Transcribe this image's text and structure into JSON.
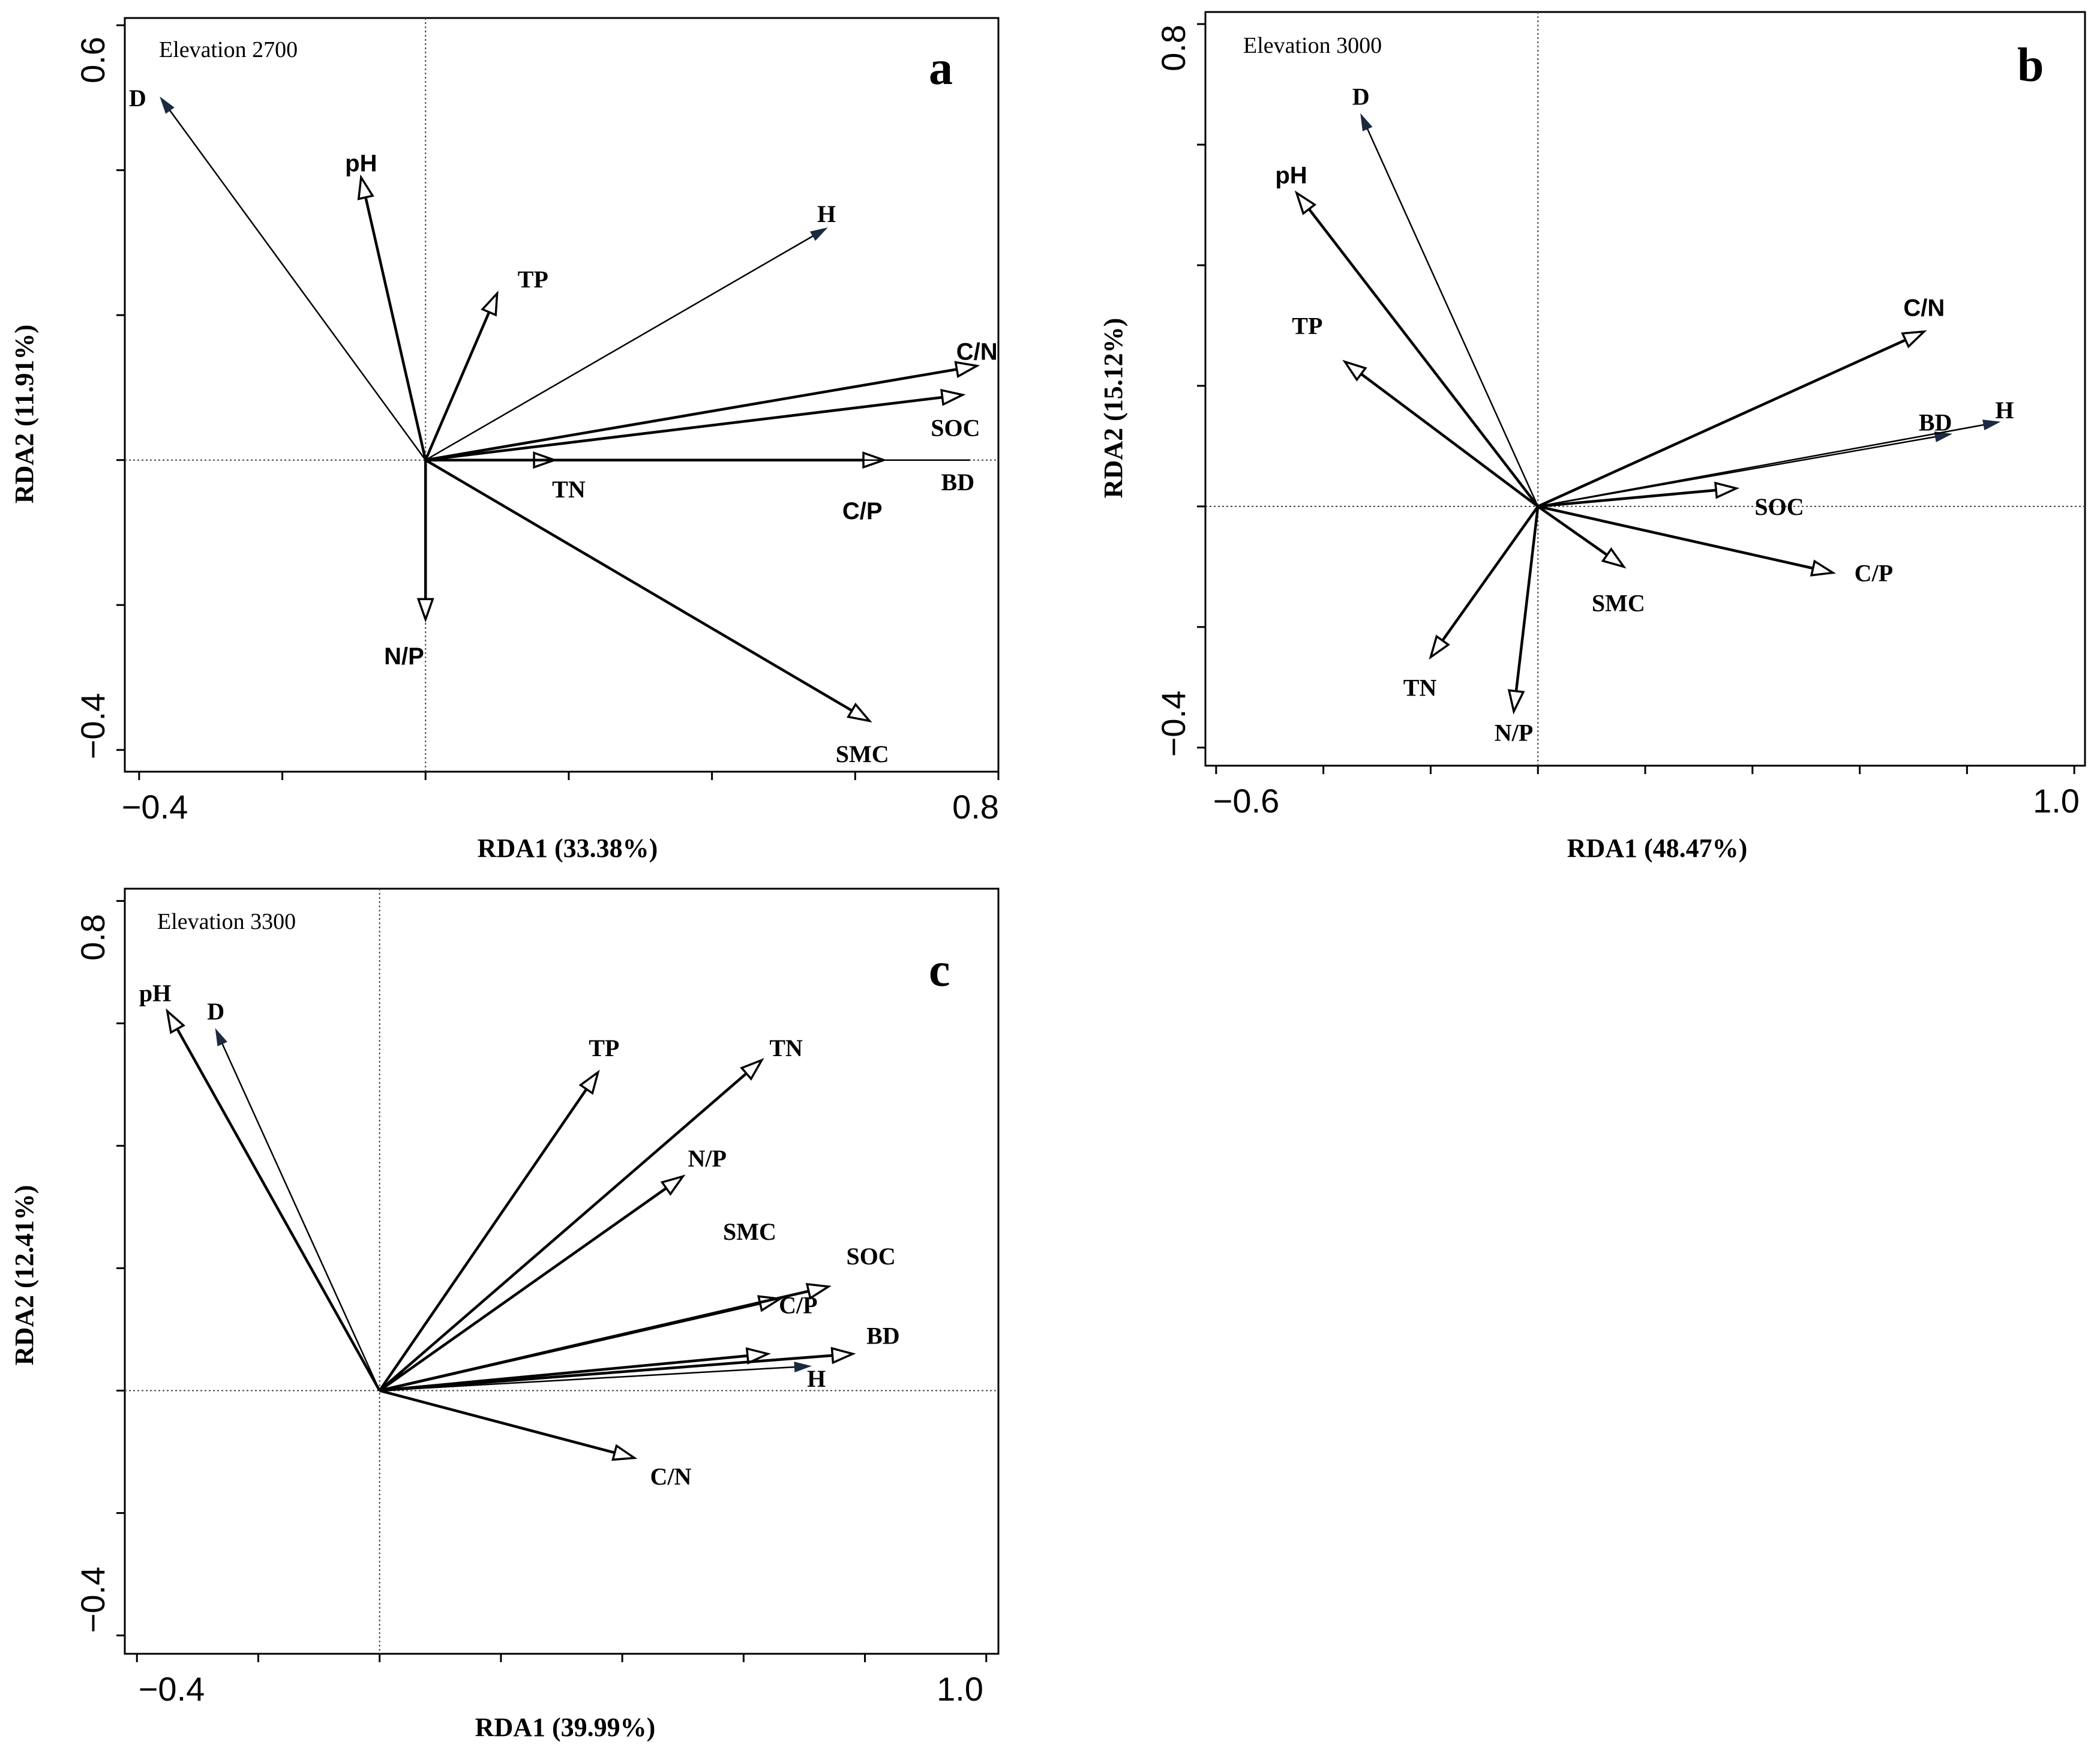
{
  "chart_data": [
    {
      "type": "biplot",
      "panel_letter": "a",
      "elevation_label": "Elevation 2700",
      "xlabel": "RDA1 (33.38%)",
      "ylabel": "RDA2 (11.91%)",
      "xlim": [
        -0.42,
        0.8
      ],
      "ylim": [
        -0.43,
        0.61
      ],
      "x_tick_labels": [
        {
          "value": -0.4,
          "label": "−0.4"
        },
        {
          "value": 0.8,
          "label": "0.8"
        }
      ],
      "y_tick_labels": [
        {
          "value": 0.6,
          "label": "0.6"
        },
        {
          "value": -0.4,
          "label": "−0.4"
        }
      ],
      "x_minor_ticks": [
        -0.4,
        -0.2,
        0.0,
        0.2,
        0.4,
        0.6,
        0.8
      ],
      "y_minor_ticks": [
        -0.4,
        -0.2,
        0.0,
        0.2,
        0.4,
        0.6
      ],
      "vectors": [
        {
          "label": "D",
          "x": -0.37,
          "y": 0.5,
          "head": "filled",
          "lx": -0.39,
          "ly": 0.5,
          "anchor": "end",
          "font": "serif"
        },
        {
          "label": "pH",
          "x": -0.09,
          "y": 0.39,
          "head": "open",
          "lx": -0.09,
          "ly": 0.41,
          "anchor": "middle",
          "font": "sans"
        },
        {
          "label": "TP",
          "x": 0.1,
          "y": 0.23,
          "head": "open",
          "lx": 0.15,
          "ly": 0.25,
          "anchor": "middle",
          "font": "serif"
        },
        {
          "label": "H",
          "x": 0.56,
          "y": 0.32,
          "head": "filled",
          "lx": 0.56,
          "ly": 0.34,
          "anchor": "middle",
          "font": "serif"
        },
        {
          "label": "C/N",
          "x": 0.77,
          "y": 0.13,
          "head": "open",
          "lx": 0.77,
          "ly": 0.15,
          "anchor": "middle",
          "font": "sans"
        },
        {
          "label": "SOC",
          "x": 0.75,
          "y": 0.09,
          "head": "open",
          "lx": 0.74,
          "ly": 0.045,
          "anchor": "middle",
          "font": "serif"
        },
        {
          "label": "TN",
          "x": 0.18,
          "y": 0.0,
          "head": "open",
          "lx": 0.2,
          "ly": -0.04,
          "anchor": "middle",
          "font": "serif"
        },
        {
          "label": "C/P",
          "x": 0.64,
          "y": 0.0,
          "head": "open",
          "lx": 0.61,
          "ly": -0.07,
          "anchor": "middle",
          "font": "sans"
        },
        {
          "label": "BD",
          "x": 0.76,
          "y": 0.0,
          "head": "none",
          "lx": 0.72,
          "ly": -0.03,
          "anchor": "start",
          "font": "serif"
        },
        {
          "label": "N/P",
          "x": 0.0,
          "y": -0.22,
          "head": "open",
          "lx": -0.03,
          "ly": -0.27,
          "anchor": "middle",
          "font": "sans"
        },
        {
          "label": "SMC",
          "x": 0.62,
          "y": -0.36,
          "head": "open",
          "lx": 0.61,
          "ly": -0.405,
          "anchor": "middle",
          "font": "serif"
        }
      ]
    },
    {
      "type": "biplot",
      "panel_letter": "b",
      "elevation_label": "Elevation 3000",
      "xlabel": "RDA1 (48.47%)",
      "ylabel": "RDA2 (15.12%)",
      "xlim": [
        -0.62,
        1.02
      ],
      "ylim": [
        -0.43,
        0.82
      ],
      "x_tick_labels": [
        {
          "value": -0.6,
          "label": "−0.6"
        },
        {
          "value": 1.0,
          "label": "1.0"
        }
      ],
      "y_tick_labels": [
        {
          "value": 0.8,
          "label": "0.8"
        },
        {
          "value": -0.4,
          "label": "−0.4"
        }
      ],
      "x_minor_ticks": [
        -0.6,
        -0.4,
        -0.2,
        0.0,
        0.2,
        0.4,
        0.6,
        0.8,
        1.0
      ],
      "y_minor_ticks": [
        -0.4,
        -0.2,
        0.0,
        0.2,
        0.4,
        0.6,
        0.8
      ],
      "vectors": [
        {
          "label": "D",
          "x": -0.33,
          "y": 0.65,
          "head": "filled",
          "lx": -0.33,
          "ly": 0.68,
          "anchor": "middle",
          "font": "serif"
        },
        {
          "label": "pH",
          "x": -0.45,
          "y": 0.52,
          "head": "open",
          "lx": -0.46,
          "ly": 0.55,
          "anchor": "middle",
          "font": "sans"
        },
        {
          "label": "TP",
          "x": -0.36,
          "y": 0.24,
          "head": "open",
          "lx": -0.43,
          "ly": 0.3,
          "anchor": "middle",
          "font": "serif"
        },
        {
          "label": "C/N",
          "x": 0.72,
          "y": 0.29,
          "head": "open",
          "lx": 0.72,
          "ly": 0.33,
          "anchor": "middle",
          "font": "sans"
        },
        {
          "label": "BD",
          "x": 0.77,
          "y": 0.12,
          "head": "filled",
          "lx": 0.71,
          "ly": 0.14,
          "anchor": "start",
          "font": "serif"
        },
        {
          "label": "H",
          "x": 0.86,
          "y": 0.14,
          "head": "filled",
          "lx": 0.87,
          "ly": 0.16,
          "anchor": "middle",
          "font": "serif"
        },
        {
          "label": "SOC",
          "x": 0.37,
          "y": 0.03,
          "head": "open",
          "lx": 0.45,
          "ly": 0.0,
          "anchor": "middle",
          "font": "serif"
        },
        {
          "label": "SMC",
          "x": 0.16,
          "y": -0.1,
          "head": "open",
          "lx": 0.15,
          "ly": -0.16,
          "anchor": "middle",
          "font": "serif"
        },
        {
          "label": "C/P",
          "x": 0.55,
          "y": -0.11,
          "head": "open",
          "lx": 0.59,
          "ly": -0.11,
          "anchor": "start",
          "font": "serif"
        },
        {
          "label": "TN",
          "x": -0.2,
          "y": -0.25,
          "head": "open",
          "lx": -0.22,
          "ly": -0.3,
          "anchor": "middle",
          "font": "serif"
        },
        {
          "label": "N/P",
          "x": -0.045,
          "y": -0.34,
          "head": "open",
          "lx": -0.045,
          "ly": -0.375,
          "anchor": "middle",
          "font": "serif"
        }
      ]
    },
    {
      "type": "biplot",
      "panel_letter": "c",
      "elevation_label": "Elevation 3300",
      "xlabel": "RDA1 (39.99%)",
      "ylabel": "RDA2 (12.41%)",
      "xlim": [
        -0.42,
        1.02
      ],
      "ylim": [
        -0.43,
        0.82
      ],
      "x_tick_labels": [
        {
          "value": -0.4,
          "label": "−0.4"
        },
        {
          "value": 1.0,
          "label": "1.0"
        }
      ],
      "y_tick_labels": [
        {
          "value": 0.8,
          "label": "0.8"
        },
        {
          "value": -0.4,
          "label": "−0.4"
        }
      ],
      "x_minor_ticks": [
        -0.4,
        -0.2,
        0.0,
        0.2,
        0.4,
        0.6,
        0.8,
        1.0
      ],
      "y_minor_ticks": [
        -0.4,
        -0.2,
        0.0,
        0.2,
        0.4,
        0.6,
        0.8
      ],
      "vectors": [
        {
          "label": "pH",
          "x": -0.35,
          "y": 0.62,
          "head": "open",
          "lx": -0.37,
          "ly": 0.65,
          "anchor": "middle",
          "font": "serif"
        },
        {
          "label": "D",
          "x": -0.27,
          "y": 0.59,
          "head": "filled",
          "lx": -0.27,
          "ly": 0.62,
          "anchor": "middle",
          "font": "serif"
        },
        {
          "label": "TP",
          "x": 0.36,
          "y": 0.52,
          "head": "open",
          "lx": 0.37,
          "ly": 0.56,
          "anchor": "middle",
          "font": "serif"
        },
        {
          "label": "TN",
          "x": 0.63,
          "y": 0.54,
          "head": "open",
          "lx": 0.67,
          "ly": 0.56,
          "anchor": "middle",
          "font": "serif"
        },
        {
          "label": "N/P",
          "x": 0.5,
          "y": 0.35,
          "head": "open",
          "lx": 0.54,
          "ly": 0.38,
          "anchor": "middle",
          "font": "serif"
        },
        {
          "label": "SMC",
          "x": 0.66,
          "y": 0.15,
          "head": "open",
          "lx": 0.61,
          "ly": 0.26,
          "anchor": "middle",
          "font": "serif"
        },
        {
          "label": "SOC",
          "x": 0.74,
          "y": 0.17,
          "head": "open",
          "lx": 0.81,
          "ly": 0.22,
          "anchor": "middle",
          "font": "serif"
        },
        {
          "label": "C/P",
          "x": 0.64,
          "y": 0.06,
          "head": "open",
          "lx": 0.69,
          "ly": 0.14,
          "anchor": "middle",
          "font": "serif"
        },
        {
          "label": "BD",
          "x": 0.78,
          "y": 0.06,
          "head": "open",
          "lx": 0.83,
          "ly": 0.09,
          "anchor": "middle",
          "font": "serif"
        },
        {
          "label": "H",
          "x": 0.71,
          "y": 0.04,
          "head": "filled",
          "lx": 0.72,
          "ly": 0.02,
          "anchor": "middle",
          "font": "serif"
        },
        {
          "label": "C/N",
          "x": 0.42,
          "y": -0.11,
          "head": "open",
          "lx": 0.48,
          "ly": -0.14,
          "anchor": "middle",
          "font": "serif"
        }
      ]
    }
  ]
}
